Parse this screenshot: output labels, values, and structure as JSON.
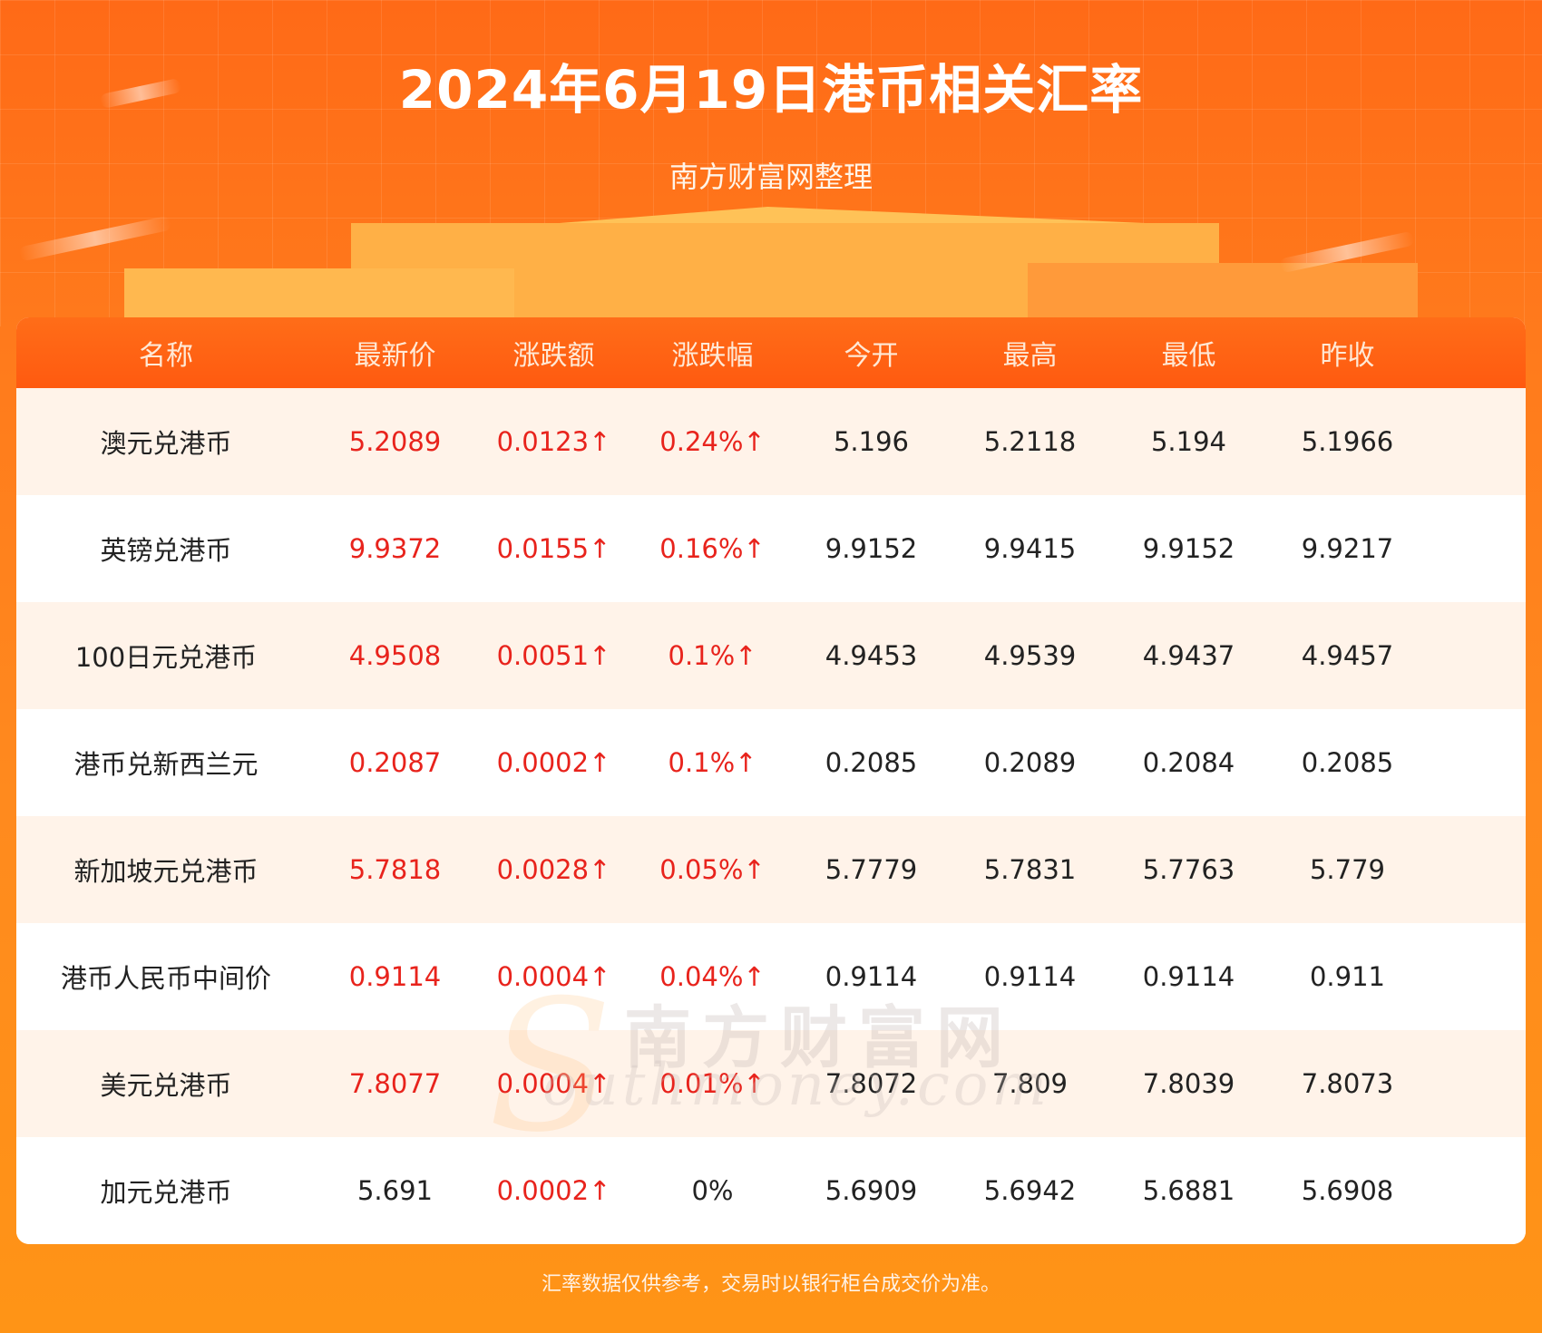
{
  "header": {
    "title": "2024年6月19日港币相关汇率",
    "subtitle": "南方财富网整理"
  },
  "table": {
    "columns": [
      "名称",
      "最新价",
      "涨跌额",
      "涨跌幅",
      "今开",
      "最高",
      "最低",
      "昨收"
    ],
    "rows": [
      {
        "name": "澳元兑港币",
        "latest": "5.2089",
        "change": "0.0123↑",
        "pct": "0.24%↑",
        "open": "5.196",
        "high": "5.2118",
        "low": "5.194",
        "prev": "5.1966"
      },
      {
        "name": "英镑兑港币",
        "latest": "9.9372",
        "change": "0.0155↑",
        "pct": "0.16%↑",
        "open": "9.9152",
        "high": "9.9415",
        "low": "9.9152",
        "prev": "9.9217"
      },
      {
        "name": "100日元兑港币",
        "latest": "4.9508",
        "change": "0.0051↑",
        "pct": "0.1%↑",
        "open": "4.9453",
        "high": "4.9539",
        "low": "4.9437",
        "prev": "4.9457"
      },
      {
        "name": "港币兑新西兰元",
        "latest": "0.2087",
        "change": "0.0002↑",
        "pct": "0.1%↑",
        "open": "0.2085",
        "high": "0.2089",
        "low": "0.2084",
        "prev": "0.2085"
      },
      {
        "name": "新加坡元兑港币",
        "latest": "5.7818",
        "change": "0.0028↑",
        "pct": "0.05%↑",
        "open": "5.7779",
        "high": "5.7831",
        "low": "5.7763",
        "prev": "5.779"
      },
      {
        "name": "港币人民币中间价",
        "latest": "0.9114",
        "change": "0.0004↑",
        "pct": "0.04%↑",
        "open": "0.9114",
        "high": "0.9114",
        "low": "0.9114",
        "prev": "0.911"
      },
      {
        "name": "美元兑港币",
        "latest": "7.8077",
        "change": "0.0004↑",
        "pct": "0.01%↑",
        "open": "7.8072",
        "high": "7.809",
        "low": "7.8039",
        "prev": "7.8073"
      },
      {
        "name": "加元兑港币",
        "latest": "5.691",
        "change": "0.0002↑",
        "pct": "0%",
        "open": "5.6909",
        "high": "5.6942",
        "low": "5.6881",
        "prev": "5.6908"
      }
    ]
  },
  "watermark": {
    "cn": "南方财富网",
    "en": "outhmoney.com",
    "s": "S"
  },
  "footer": {
    "note": "汇率数据仅供参考，交易时以银行柜台成交价为准。"
  },
  "colors": {
    "up": "#e8231c",
    "header_bg": "#ff6a17",
    "row_alt": "#fff3e9"
  }
}
